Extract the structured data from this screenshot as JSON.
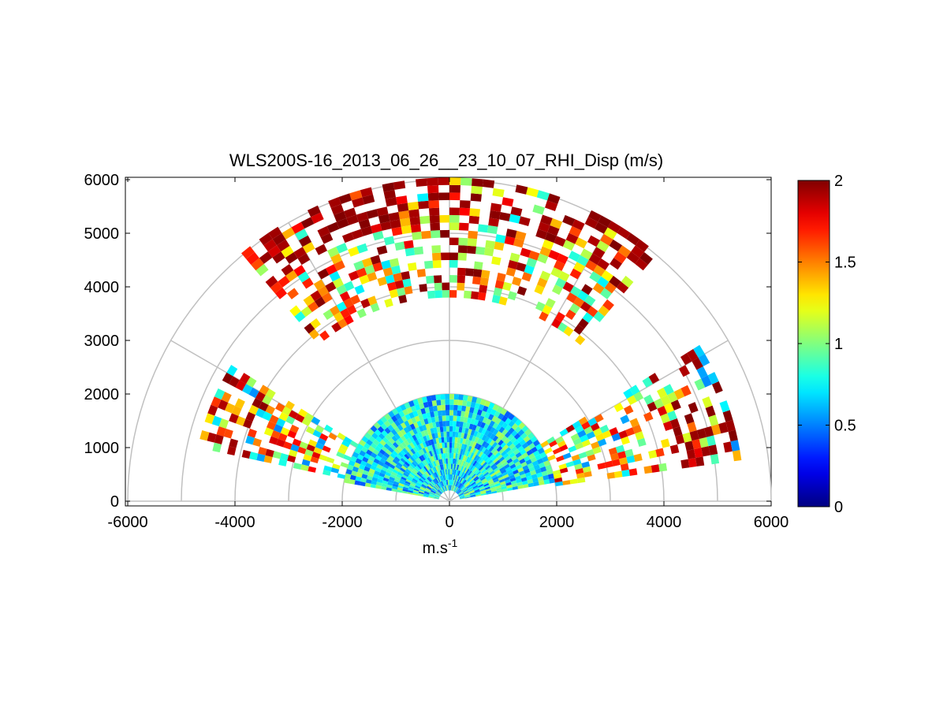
{
  "chart_data": {
    "type": "heatmap",
    "projection": "polar RHI sector (range-height)",
    "title": "WLS200S-16_2013_06_26__23_10_07_RHI_Disp (m/s)",
    "xlabel": "m.s",
    "xlabel_superscript": "-1",
    "ylabel": "",
    "xlim": [
      -6000,
      6000
    ],
    "ylim": [
      0,
      6000
    ],
    "x_ticks": [
      "-6000",
      "-4000",
      "-2000",
      "0",
      "2000",
      "4000",
      "6000"
    ],
    "y_ticks": [
      "0",
      "1000",
      "2000",
      "3000",
      "4000",
      "5000",
      "6000"
    ],
    "polar_grid": {
      "range_rings": [
        1000,
        2000,
        3000,
        4000,
        5000,
        6000
      ],
      "spokes_deg": [
        0,
        30,
        60,
        90,
        120,
        150,
        180
      ],
      "color": "#c0c0c0"
    },
    "colorbar": {
      "colormap": "jet",
      "range": [
        0,
        2
      ],
      "ticks": [
        "0",
        "0.5",
        "1",
        "1.5",
        "2"
      ],
      "stops": [
        "#00008f",
        "#0000ff",
        "#00ffff",
        "#ffff00",
        "#ff0000",
        "#800000"
      ]
    },
    "regions": [
      {
        "note": "near-field low-elevation bins",
        "range_m": [
          200,
          2000
        ],
        "elev_deg": [
          10,
          170
        ],
        "value_mean": 0.75
      },
      {
        "note": "mid-range low-elevation bins",
        "range_m": [
          2000,
          5400
        ],
        "elev_deg": [
          8,
          32
        ],
        "value_mean": 1.2
      },
      {
        "note": "mid-range low-elevation bins",
        "range_m": [
          2000,
          4800
        ],
        "elev_deg": [
          148,
          168
        ],
        "value_mean": 1.2
      },
      {
        "note": "upper arc",
        "range_m": [
          3800,
          6000
        ],
        "elev_deg": [
          50,
          130
        ],
        "value_mean": 1.4
      }
    ]
  }
}
